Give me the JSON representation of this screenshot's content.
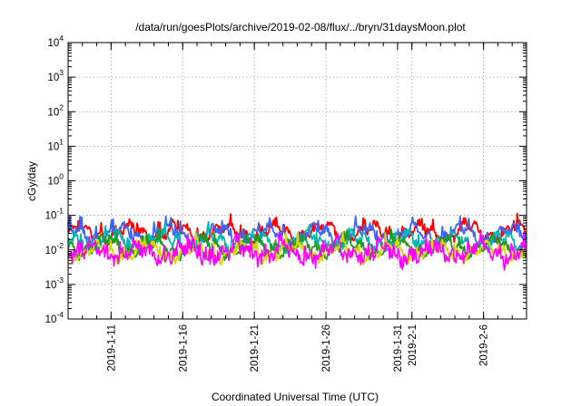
{
  "chart_data": {
    "type": "line",
    "title": "/data/run/goesPlots/archive/2019-02-08/flux/../bryn/31daysMoon.plot",
    "xlabel": "Coordinated Universal Time (UTC)",
    "ylabel": "cGy/day",
    "y_scale": "log",
    "ylim": [
      0.0001,
      10000
    ],
    "y_ticks": [
      {
        "base": "10",
        "exp": "-4"
      },
      {
        "base": "10",
        "exp": "-3"
      },
      {
        "base": "10",
        "exp": "-2"
      },
      {
        "base": "10",
        "exp": "-1"
      },
      {
        "base": "10",
        "exp": "0"
      },
      {
        "base": "10",
        "exp": "1"
      },
      {
        "base": "10",
        "exp": "2"
      },
      {
        "base": "10",
        "exp": "3"
      },
      {
        "base": "10",
        "exp": "4"
      }
    ],
    "xlim": [
      "2019-01-08",
      "2019-02-09"
    ],
    "x_ticks": [
      {
        "date": "2019-01-11",
        "label": "2019-1-11"
      },
      {
        "date": "2019-01-16",
        "label": "2019-1-16"
      },
      {
        "date": "2019-01-21",
        "label": "2019-1-21"
      },
      {
        "date": "2019-01-26",
        "label": "2019-1-26"
      },
      {
        "date": "2019-01-31",
        "label": "2019-1-31"
      },
      {
        "date": "2019-02-01",
        "label": "2019-2-1"
      },
      {
        "date": "2019-02-06",
        "label": "2019-2-6"
      }
    ],
    "grid": true,
    "series": [
      {
        "color": "#ff0000",
        "level": 0.032
      },
      {
        "color": "#3a66ff",
        "level": 0.028
      },
      {
        "color": "#00b8b0",
        "level": 0.017
      },
      {
        "color": "#229a22",
        "level": 0.012
      },
      {
        "color": "#d8d800",
        "level": 0.009
      },
      {
        "color": "#ff00ff",
        "level": 0.0085
      }
    ]
  }
}
